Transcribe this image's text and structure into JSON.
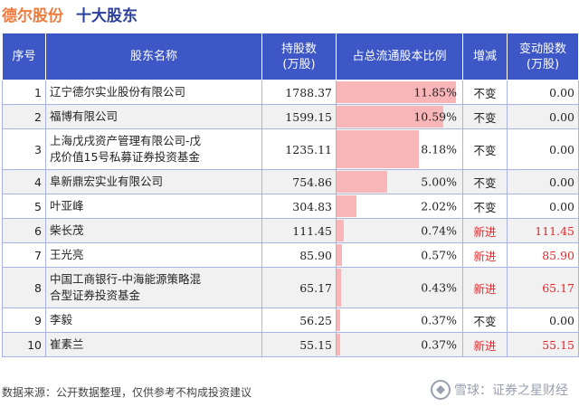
{
  "header": {
    "company": "德尔股份",
    "subtitle": "十大股东"
  },
  "columns": [
    "序号",
    "股东名称",
    "持股数\n(万股)",
    "占总流通股本比例",
    "增减",
    "变动股数\n(万股)"
  ],
  "rows": [
    {
      "idx": "1",
      "name": "辽宁德尔实业股份有限公司",
      "shares": "1788.37",
      "ratio": "11.85%",
      "ratio_value": 11.85,
      "change": "不变",
      "change_shares": "0.00",
      "is_new": false
    },
    {
      "idx": "2",
      "name": "福博有限公司",
      "shares": "1599.15",
      "ratio": "10.59%",
      "ratio_value": 10.59,
      "change": "不变",
      "change_shares": "0.00",
      "is_new": false
    },
    {
      "idx": "3",
      "name": "上海戊戌资产管理有限公司-戊\n戌价值15号私募证券投资基金",
      "shares": "1235.11",
      "ratio": "8.18%",
      "ratio_value": 8.18,
      "change": "不变",
      "change_shares": "0.00",
      "is_new": false
    },
    {
      "idx": "4",
      "name": "阜新鼎宏实业有限公司",
      "shares": "754.86",
      "ratio": "5.00%",
      "ratio_value": 5.0,
      "change": "不变",
      "change_shares": "0.00",
      "is_new": false
    },
    {
      "idx": "5",
      "name": "叶亚峰",
      "shares": "304.83",
      "ratio": "2.02%",
      "ratio_value": 2.02,
      "change": "不变",
      "change_shares": "0.00",
      "is_new": false
    },
    {
      "idx": "6",
      "name": "柴长茂",
      "shares": "111.45",
      "ratio": "0.74%",
      "ratio_value": 0.74,
      "change": "新进",
      "change_shares": "111.45",
      "is_new": true
    },
    {
      "idx": "7",
      "name": "王光亮",
      "shares": "85.90",
      "ratio": "0.57%",
      "ratio_value": 0.57,
      "change": "新进",
      "change_shares": "85.90",
      "is_new": true
    },
    {
      "idx": "8",
      "name": "中国工商银行-中海能源策略混\n合型证券投资基金",
      "shares": "65.17",
      "ratio": "0.43%",
      "ratio_value": 0.43,
      "change": "新进",
      "change_shares": "65.17",
      "is_new": true
    },
    {
      "idx": "9",
      "name": "李毅",
      "shares": "56.25",
      "ratio": "0.37%",
      "ratio_value": 0.37,
      "change": "不变",
      "change_shares": "0.00",
      "is_new": false
    },
    {
      "idx": "10",
      "name": "崔素兰",
      "shares": "55.15",
      "ratio": "0.37%",
      "ratio_value": 0.37,
      "change": "新进",
      "change_shares": "55.15",
      "is_new": true
    }
  ],
  "footer": {
    "source": "数据来源：公开数据整理，仅供参考不构成投资建议"
  },
  "brand": {
    "text": "雪球：证券之星财经"
  },
  "watermark": "证券之星",
  "colors": {
    "header_bg": "#3d57c7",
    "bar": "#f9b6b9",
    "new_text": "#e8262a",
    "company": "#f07b3f",
    "subtitle": "#2b3f9b"
  }
}
